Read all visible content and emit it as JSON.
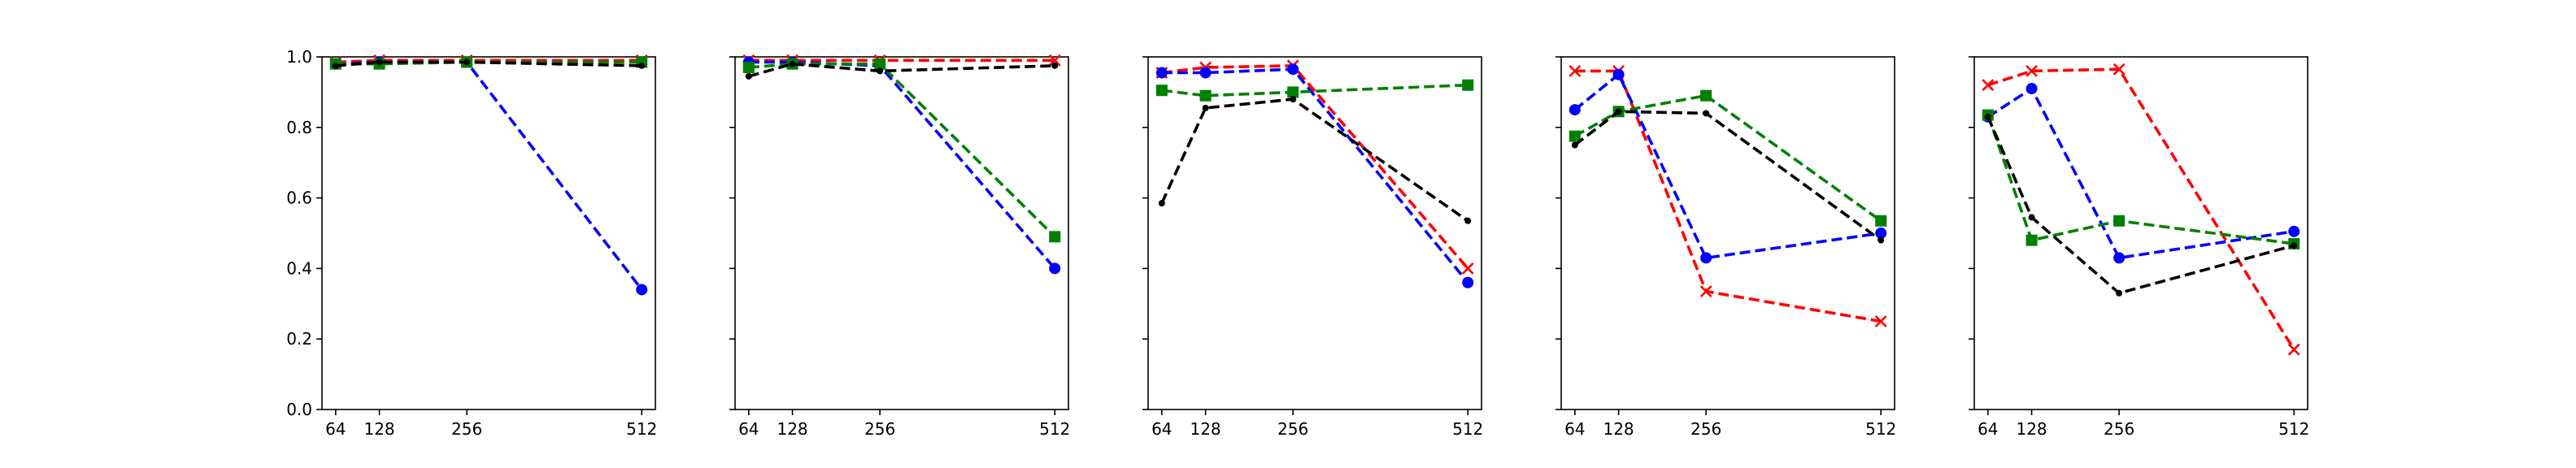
{
  "figure": {
    "series_styles": {
      "red": {
        "color": "#ff0000",
        "marker": "x"
      },
      "blue": {
        "color": "#0000ff",
        "marker": "circle"
      },
      "green": {
        "color": "#008000",
        "marker": "square"
      },
      "black": {
        "color": "#000000",
        "marker": "dot"
      }
    }
  },
  "chart_data": [
    {
      "type": "line",
      "x": [
        64,
        128,
        256,
        512
      ],
      "xticks": [
        "64",
        "128",
        "256",
        "512"
      ],
      "yticks": [
        "0.0",
        "0.2",
        "0.4",
        "0.6",
        "0.8",
        "1.0"
      ],
      "xlim": [
        44,
        532
      ],
      "ylim": [
        0,
        1.0
      ],
      "grid": false,
      "series": [
        {
          "style": "red",
          "values": [
            0.985,
            0.99,
            0.99,
            0.99
          ]
        },
        {
          "style": "blue",
          "values": [
            0.98,
            0.985,
            0.985,
            0.34
          ]
        },
        {
          "style": "green",
          "values": [
            0.98,
            0.98,
            0.985,
            0.985
          ]
        },
        {
          "style": "black",
          "values": [
            0.975,
            0.985,
            0.985,
            0.975
          ]
        }
      ]
    },
    {
      "type": "line",
      "x": [
        64,
        128,
        256,
        512
      ],
      "xticks": [
        "64",
        "128",
        "256",
        "512"
      ],
      "yticks": [
        "0.0",
        "0.2",
        "0.4",
        "0.6",
        "0.8",
        "1.0"
      ],
      "xlim": [
        44,
        532
      ],
      "ylim": [
        0,
        1.0
      ],
      "grid": false,
      "series": [
        {
          "style": "red",
          "values": [
            0.99,
            0.99,
            0.99,
            0.99
          ]
        },
        {
          "style": "blue",
          "values": [
            0.985,
            0.985,
            0.975,
            0.4
          ]
        },
        {
          "style": "green",
          "values": [
            0.97,
            0.98,
            0.98,
            0.49
          ]
        },
        {
          "style": "black",
          "values": [
            0.945,
            0.98,
            0.96,
            0.975
          ]
        }
      ]
    },
    {
      "type": "line",
      "x": [
        64,
        128,
        256,
        512
      ],
      "xticks": [
        "64",
        "128",
        "256",
        "512"
      ],
      "yticks": [
        "0.0",
        "0.2",
        "0.4",
        "0.6",
        "0.8",
        "1.0"
      ],
      "xlim": [
        44,
        532
      ],
      "ylim": [
        0,
        1.0
      ],
      "grid": false,
      "series": [
        {
          "style": "red",
          "values": [
            0.955,
            0.97,
            0.975,
            0.4
          ]
        },
        {
          "style": "blue",
          "values": [
            0.955,
            0.955,
            0.965,
            0.36
          ]
        },
        {
          "style": "green",
          "values": [
            0.905,
            0.89,
            0.9,
            0.92
          ]
        },
        {
          "style": "black",
          "values": [
            0.585,
            0.855,
            0.88,
            0.535
          ]
        }
      ]
    },
    {
      "type": "line",
      "x": [
        64,
        128,
        256,
        512
      ],
      "xticks": [
        "64",
        "128",
        "256",
        "512"
      ],
      "yticks": [
        "0.0",
        "0.2",
        "0.4",
        "0.6",
        "0.8",
        "1.0"
      ],
      "xlim": [
        44,
        532
      ],
      "ylim": [
        0,
        1.0
      ],
      "grid": false,
      "series": [
        {
          "style": "red",
          "values": [
            0.96,
            0.96,
            0.335,
            0.25
          ]
        },
        {
          "style": "blue",
          "values": [
            0.85,
            0.95,
            0.43,
            0.5
          ]
        },
        {
          "style": "green",
          "values": [
            0.775,
            0.845,
            0.89,
            0.535
          ]
        },
        {
          "style": "black",
          "values": [
            0.75,
            0.845,
            0.84,
            0.48
          ]
        }
      ]
    },
    {
      "type": "line",
      "x": [
        64,
        128,
        256,
        512
      ],
      "xticks": [
        "64",
        "128",
        "256",
        "512"
      ],
      "yticks": [
        "0.0",
        "0.2",
        "0.4",
        "0.6",
        "0.8",
        "1.0"
      ],
      "xlim": [
        44,
        532
      ],
      "ylim": [
        0,
        1.0
      ],
      "grid": false,
      "series": [
        {
          "style": "red",
          "values": [
            0.92,
            0.96,
            0.965,
            0.17
          ]
        },
        {
          "style": "blue",
          "values": [
            0.83,
            0.91,
            0.43,
            0.505
          ]
        },
        {
          "style": "green",
          "values": [
            0.835,
            0.48,
            0.535,
            0.47
          ]
        },
        {
          "style": "black",
          "values": [
            0.83,
            0.545,
            0.33,
            0.465
          ]
        }
      ]
    }
  ]
}
